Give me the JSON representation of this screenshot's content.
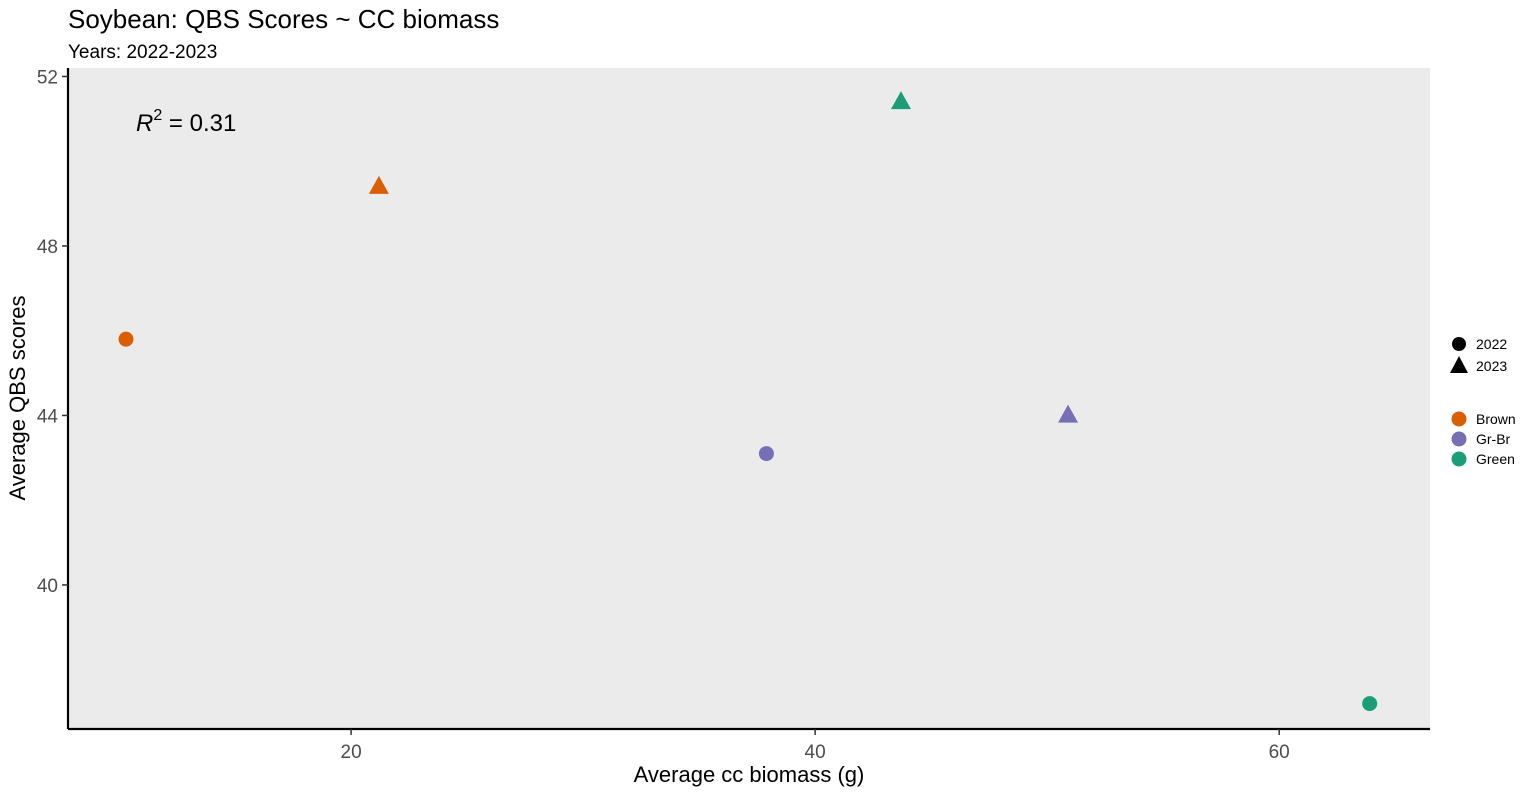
{
  "chart_data": {
    "type": "scatter",
    "title": "Soybean: QBS Scores ~ CC biomass",
    "subtitle": "Years: 2022-2023",
    "xlabel": "Average cc biomass (g)",
    "ylabel": "Average QBS scores",
    "xlim": [
      7.8,
      66.5
    ],
    "ylim": [
      36.6,
      52.2
    ],
    "x_ticks": [
      20,
      40,
      60
    ],
    "y_ticks": [
      40,
      44,
      48,
      52
    ],
    "grid": false,
    "annotation": {
      "symbol": "R",
      "exponent": "2",
      "text": " = 0.31"
    },
    "legend_position": "right",
    "shape_legend": [
      {
        "label": "2022",
        "shape": "circle"
      },
      {
        "label": "2023",
        "shape": "triangle"
      }
    ],
    "color_legend": [
      {
        "label": "Brown",
        "color": "#D95F02"
      },
      {
        "label": "Gr-Br",
        "color": "#7570B3"
      },
      {
        "label": "Green",
        "color": "#1B9E77"
      }
    ],
    "points": [
      {
        "group": "Brown",
        "year": "2022",
        "x": 10.3,
        "y": 45.8
      },
      {
        "group": "Brown",
        "year": "2023",
        "x": 21.2,
        "y": 49.4
      },
      {
        "group": "Gr-Br",
        "year": "2022",
        "x": 37.9,
        "y": 43.1
      },
      {
        "group": "Gr-Br",
        "year": "2023",
        "x": 50.9,
        "y": 44.0
      },
      {
        "group": "Green",
        "year": "2022",
        "x": 63.9,
        "y": 37.2
      },
      {
        "group": "Green",
        "year": "2023",
        "x": 43.7,
        "y": 51.4
      }
    ],
    "panel_background": "#EBEBEB"
  }
}
